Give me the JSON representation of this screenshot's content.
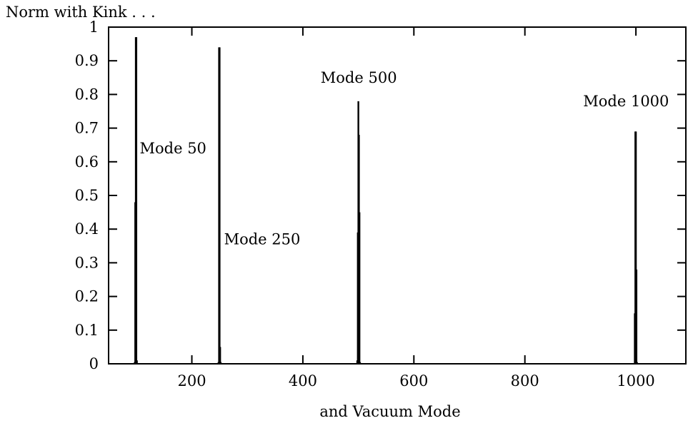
{
  "chart_data": {
    "type": "line",
    "title": "",
    "ylabel": "Norm with Kink . . .",
    "xlabel": "and Vacuum Mode",
    "xlim": [
      50,
      1090
    ],
    "ylim": [
      0,
      1
    ],
    "x_ticks": [
      200,
      400,
      600,
      800,
      1000
    ],
    "y_ticks": [
      0,
      0.1,
      0.2,
      0.3,
      0.4,
      0.5,
      0.6,
      0.7,
      0.8,
      0.9,
      1
    ],
    "grid": false,
    "legend": "none",
    "series": [
      {
        "peaks": [
          {
            "x": 97,
            "y": 0.005
          },
          {
            "x": 98,
            "y": 0.48
          },
          {
            "x": 99,
            "y": 0.97
          },
          {
            "x": 100,
            "y": 0.97
          },
          {
            "x": 101,
            "y": 0.01
          }
        ]
      },
      {
        "peaks": [
          {
            "x": 248,
            "y": 0.005
          },
          {
            "x": 249,
            "y": 0.94
          },
          {
            "x": 250,
            "y": 0.94
          },
          {
            "x": 251,
            "y": 0.05
          },
          {
            "x": 252,
            "y": 0.005
          }
        ]
      },
      {
        "peaks": [
          {
            "x": 498,
            "y": 0.01
          },
          {
            "x": 499,
            "y": 0.39
          },
          {
            "x": 500,
            "y": 0.78
          },
          {
            "x": 501,
            "y": 0.68
          },
          {
            "x": 502,
            "y": 0.45
          },
          {
            "x": 503,
            "y": 0.005
          }
        ]
      },
      {
        "peaks": [
          {
            "x": 998,
            "y": 0.15
          },
          {
            "x": 999,
            "y": 0.69
          },
          {
            "x": 1000,
            "y": 0.69
          },
          {
            "x": 1001,
            "y": 0.28
          },
          {
            "x": 1002,
            "y": 0.005
          }
        ]
      }
    ],
    "annotations": [
      {
        "text": "Mode 50",
        "x": 106,
        "y": 0.64
      },
      {
        "text": "Mode 250",
        "x": 258,
        "y": 0.37
      },
      {
        "text": "Mode 500",
        "x": 432,
        "y": 0.85
      },
      {
        "text": "Mode 1000",
        "x": 905,
        "y": 0.78
      }
    ]
  }
}
